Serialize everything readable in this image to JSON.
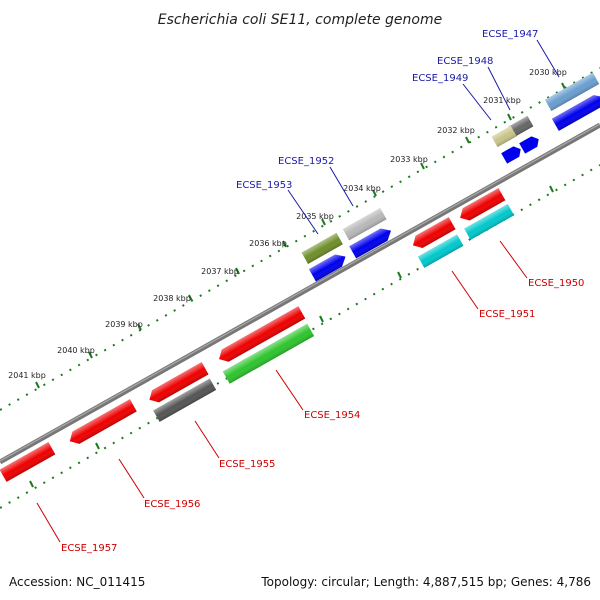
{
  "title": "Escherichia coli SE11, complete genome",
  "footer": {
    "accession": "Accession: NC_011415",
    "topology": "Topology: circular; Length: 4,887,515 bp; Genes: 4,786"
  },
  "colors": {
    "forward_label": "#1a1aa8",
    "reverse_label": "#cc0000",
    "backbone": "#777777",
    "ticks": "#1e7a1e"
  },
  "ticks": [
    "2030 kbp",
    "2031 kbp",
    "2032 kbp",
    "2033 kbp",
    "2034 kbp",
    "2035 kbp",
    "2036 kbp",
    "2037 kbp",
    "2038 kbp",
    "2039 kbp",
    "2040 kbp",
    "2041 kbp"
  ],
  "forward_labels": [
    "ECSE_1947",
    "ECSE_1948",
    "ECSE_1949",
    "ECSE_1952",
    "ECSE_1953"
  ],
  "reverse_labels": [
    "ECSE_1950",
    "ECSE_1951",
    "ECSE_1954",
    "ECSE_1955",
    "ECSE_1956",
    "ECSE_1957"
  ]
}
